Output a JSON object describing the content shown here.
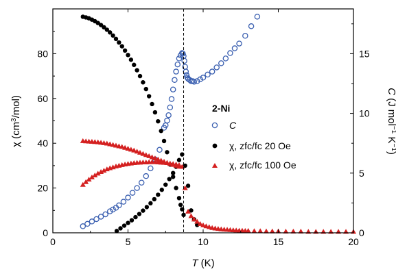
{
  "chart_data": {
    "type": "scatter",
    "title": "",
    "xlabel": "T (K)",
    "xlabel_var": "T",
    "xlabel_unit": " (K)",
    "ylabel_left": "χ (cm³/mol)",
    "ylabel_left_parts": [
      "χ (cm",
      "3",
      "/mol)"
    ],
    "ylabel_right": "C (J mol⁻¹ K⁻¹)",
    "ylabel_right_parts": [
      "C",
      " (J mol",
      "−1",
      " K",
      "−1",
      ")"
    ],
    "xlim": [
      0,
      20
    ],
    "ylim_left": [
      0,
      100
    ],
    "ylim_right": [
      0,
      18.75
    ],
    "x_ticks": [
      0,
      5,
      10,
      15,
      20
    ],
    "y_left_ticks": [
      0,
      20,
      40,
      60,
      80
    ],
    "y_right_ticks": [
      0,
      5,
      10,
      15
    ],
    "grid": false,
    "legend_position": "center-right",
    "legend_title": "2-Ni",
    "vline_x": 8.7,
    "colors": {
      "C": "#3a5fb0",
      "chi20": "#000000",
      "chi100": "#d42020"
    },
    "series": [
      {
        "key": "C",
        "name": "C",
        "axis": "right",
        "marker": "open-circle",
        "x": [
          2.0,
          2.3,
          2.6,
          2.9,
          3.2,
          3.5,
          3.8,
          4.0,
          4.2,
          4.4,
          4.7,
          5.0,
          5.3,
          5.6,
          5.9,
          6.2,
          6.5,
          6.8,
          7.1,
          7.4,
          7.5,
          7.6,
          7.7,
          7.8,
          7.9,
          8.0,
          8.1,
          8.2,
          8.3,
          8.4,
          8.5,
          8.6,
          8.65,
          8.7,
          8.75,
          8.8,
          8.85,
          8.9,
          8.95,
          9.0,
          9.1,
          9.2,
          9.3,
          9.4,
          9.6,
          9.8,
          10.0,
          10.3,
          10.6,
          10.9,
          11.2,
          11.5,
          11.8,
          12.1,
          12.4,
          12.8,
          13.2,
          13.6
        ],
        "y": [
          0.55,
          0.75,
          0.95,
          1.15,
          1.35,
          1.55,
          1.8,
          1.95,
          2.1,
          2.3,
          2.6,
          2.95,
          3.35,
          3.75,
          4.2,
          4.75,
          5.4,
          6.15,
          6.95,
          8.8,
          9.0,
          9.4,
          9.85,
          10.5,
          11.2,
          12.0,
          12.8,
          13.5,
          14.1,
          14.6,
          14.85,
          15.05,
          15.0,
          14.8,
          14.4,
          13.9,
          13.5,
          13.2,
          13.0,
          12.9,
          12.8,
          12.7,
          12.7,
          12.65,
          12.7,
          12.85,
          13.0,
          13.25,
          13.5,
          13.85,
          14.2,
          14.6,
          15.05,
          15.45,
          15.85,
          16.5,
          17.3,
          18.1
        ]
      },
      {
        "key": "chi20",
        "name": "χ, zfc/fc 20 Oe",
        "axis": "left",
        "marker": "filled-circle",
        "x": [
          2.0,
          2.2,
          2.4,
          2.6,
          2.8,
          3.0,
          3.2,
          3.4,
          3.6,
          3.8,
          4.0,
          4.2,
          4.4,
          4.6,
          4.8,
          5.0,
          5.2,
          5.4,
          5.6,
          5.8,
          6.0,
          6.2,
          6.4,
          6.6,
          6.8,
          7.0,
          7.2,
          7.4,
          7.6,
          7.8,
          8.0,
          8.2,
          8.4,
          8.5,
          8.6,
          8.7,
          4.25,
          4.5,
          4.75,
          5.0,
          5.25,
          5.5,
          5.75,
          6.0,
          6.25,
          6.5,
          6.75,
          7.0,
          7.25,
          7.5,
          7.75,
          8.0,
          8.2,
          8.4,
          8.6,
          8.8,
          9.0,
          9.2,
          9.4,
          9.6
        ],
        "y": [
          96.5,
          96.2,
          95.8,
          95.2,
          94.5,
          93.7,
          92.8,
          91.8,
          90.7,
          89.5,
          88.1,
          86.6,
          85.0,
          83.3,
          81.4,
          79.4,
          77.3,
          75.0,
          72.6,
          70.0,
          67.2,
          64.2,
          61.0,
          57.5,
          53.8,
          49.8,
          45.5,
          41.0,
          36.0,
          30.5,
          25.0,
          20.0,
          15.5,
          12.5,
          10.5,
          8.0,
          0.8,
          2.0,
          3.2,
          4.4,
          5.6,
          7.0,
          8.4,
          9.9,
          11.5,
          13.2,
          15.0,
          17.0,
          19.2,
          21.5,
          24.0,
          26.7,
          29.5,
          32.5,
          35.0,
          30.0,
          21.0,
          10.0,
          6.0,
          3.5
        ]
      },
      {
        "key": "chi100",
        "name": "χ, zfc/fc 100 Oe",
        "axis": "left",
        "marker": "filled-triangle",
        "x": [
          2.0,
          2.2,
          2.4,
          2.6,
          2.8,
          3.0,
          3.2,
          3.4,
          3.6,
          3.8,
          4.0,
          4.2,
          4.4,
          4.6,
          4.8,
          5.0,
          5.2,
          5.4,
          5.6,
          5.8,
          6.0,
          6.2,
          6.4,
          6.6,
          6.8,
          7.0,
          7.2,
          7.4,
          7.6,
          7.8,
          8.0,
          8.2,
          8.4,
          2.0,
          2.2,
          2.4,
          2.6,
          2.8,
          3.0,
          3.2,
          3.4,
          3.6,
          3.8,
          4.0,
          4.2,
          4.4,
          4.6,
          4.8,
          5.0,
          5.2,
          5.4,
          5.6,
          5.8,
          6.0,
          6.2,
          6.4,
          6.6,
          6.8,
          7.0,
          7.2,
          7.4,
          7.6,
          7.8,
          8.0,
          8.2,
          8.4,
          8.6,
          8.8,
          9.0,
          9.2,
          9.4,
          9.6,
          9.8,
          10.0,
          10.2,
          10.4,
          10.6,
          10.8,
          11.0,
          11.2,
          11.4,
          11.6,
          11.8,
          12.0,
          12.2,
          12.4,
          12.6,
          12.8,
          13.0,
          13.4,
          13.8,
          14.2,
          14.6,
          15.0,
          15.5,
          16.0,
          16.5,
          17.0,
          17.5,
          18.0,
          18.5,
          19.0,
          19.5,
          20.0
        ],
        "y": [
          41.0,
          40.9,
          40.8,
          40.7,
          40.6,
          40.5,
          40.3,
          40.1,
          39.9,
          39.6,
          39.3,
          39.0,
          38.7,
          38.4,
          38.0,
          37.6,
          37.2,
          36.8,
          36.3,
          35.8,
          35.3,
          34.8,
          34.3,
          33.8,
          33.3,
          32.8,
          32.3,
          31.8,
          31.3,
          30.8,
          30.4,
          30.0,
          29.6,
          21.5,
          22.7,
          23.8,
          24.8,
          25.7,
          26.5,
          27.2,
          27.8,
          28.4,
          28.9,
          29.3,
          29.7,
          30.0,
          30.3,
          30.6,
          30.8,
          31.0,
          31.2,
          31.3,
          31.4,
          31.5,
          31.5,
          31.6,
          31.6,
          31.6,
          31.5,
          31.4,
          31.3,
          31.2,
          31.0,
          30.8,
          30.6,
          30.3,
          29.5,
          20.0,
          9.5,
          7.5,
          6.0,
          5.0,
          4.0,
          3.4,
          3.0,
          2.6,
          2.2,
          2.0,
          1.8,
          1.6,
          1.5,
          1.4,
          1.3,
          1.2,
          1.1,
          1.0,
          1.0,
          0.9,
          0.9,
          0.8,
          0.8,
          0.7,
          0.7,
          0.7,
          0.6,
          0.6,
          0.6,
          0.5,
          0.5,
          0.5,
          0.5,
          0.5,
          0.5,
          0.5
        ]
      }
    ]
  }
}
